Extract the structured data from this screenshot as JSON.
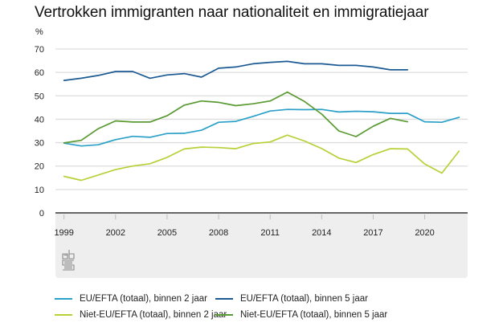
{
  "chart_data": {
    "type": "line",
    "title": "Vertrokken immigranten naar nationaliteit en immigratiejaar",
    "ylabel": "%",
    "xlabel": "",
    "ylim": [
      0,
      70
    ],
    "yticks": [
      0,
      10,
      20,
      30,
      40,
      50,
      60,
      70
    ],
    "xlim": [
      1998.5,
      2022.5
    ],
    "xticks": [
      1999,
      2002,
      2005,
      2008,
      2011,
      2014,
      2017,
      2020
    ],
    "grid": true,
    "legend_position": "bottom",
    "x": [
      1999,
      2000,
      2001,
      2002,
      2003,
      2004,
      2005,
      2006,
      2007,
      2008,
      2009,
      2010,
      2011,
      2012,
      2013,
      2014,
      2015,
      2016,
      2017,
      2018,
      2019,
      2020,
      2021,
      2022
    ],
    "series": [
      {
        "name": "EU/EFTA (totaal), binnen 2 jaar",
        "color": "#2ba0c8",
        "values": [
          29.8,
          28.6,
          29.1,
          31.3,
          32.7,
          32.3,
          33.9,
          34.0,
          35.3,
          38.7,
          39.1,
          41.2,
          43.5,
          44.2,
          44.1,
          44.2,
          43.1,
          43.4,
          43.2,
          42.5,
          42.5,
          38.9,
          38.7,
          40.8
        ]
      },
      {
        "name": "EU/EFTA (totaal), binnen 5 jaar",
        "color": "#1c5a93",
        "values": [
          56.6,
          57.5,
          58.7,
          60.4,
          60.4,
          57.5,
          58.9,
          59.5,
          58.0,
          61.8,
          62.3,
          63.7,
          64.3,
          64.7,
          63.7,
          63.7,
          63.0,
          63.0,
          62.3,
          61.1,
          61.1,
          null,
          null,
          null
        ]
      },
      {
        "name": "Niet-EU/EFTA (totaal), binnen 2 jaar",
        "color": "#b9cf36",
        "values": [
          15.6,
          13.9,
          16.2,
          18.5,
          20.0,
          21.0,
          23.7,
          27.3,
          28.1,
          27.9,
          27.4,
          29.6,
          30.3,
          33.2,
          30.7,
          27.5,
          23.4,
          21.5,
          24.9,
          27.4,
          27.3,
          20.9,
          17.0,
          26.4
        ]
      },
      {
        "name": "Niet-EU/EFTA (totaal), binnen 5 jaar",
        "color": "#5a9a32",
        "values": [
          29.9,
          31.0,
          36.0,
          39.3,
          38.8,
          38.8,
          41.5,
          46.0,
          47.8,
          47.2,
          45.8,
          46.6,
          47.8,
          51.6,
          47.6,
          42.2,
          35.0,
          32.6,
          37.0,
          40.4,
          38.9,
          null,
          null,
          null
        ]
      }
    ]
  },
  "legend": {
    "items": [
      {
        "label": "EU/EFTA (totaal), binnen 2 jaar",
        "color": "#2ba0c8"
      },
      {
        "label": "EU/EFTA (totaal), binnen 5 jaar",
        "color": "#1c5a93"
      },
      {
        "label": "Niet-EU/EFTA (totaal), binnen 2 jaar",
        "color": "#b9cf36"
      },
      {
        "label": "Niet-EU/EFTA (totaal), binnen 5 jaar",
        "color": "#5a9a32"
      }
    ]
  },
  "logo": {
    "icon": "cbs-logo-icon"
  }
}
